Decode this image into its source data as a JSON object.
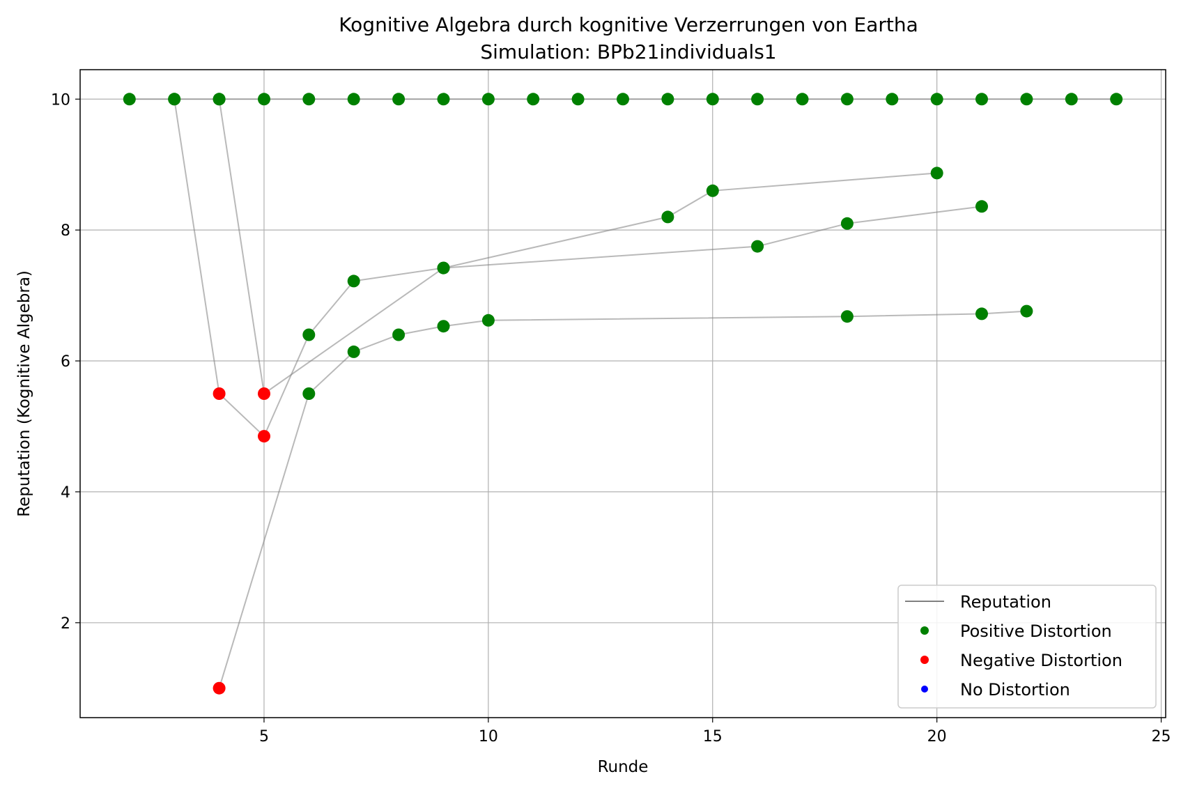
{
  "chart_data": {
    "type": "line",
    "title": "Kognitive Algebra durch kognitive Verzerrungen von Eartha",
    "subtitle": "Simulation: BPb21individuals1",
    "xlabel": "Runde",
    "ylabel": "Reputation (Kognitive Algebra)",
    "xlim": [
      0.9,
      25.1
    ],
    "ylim": [
      0.55,
      10.45
    ],
    "xticks": [
      5,
      10,
      15,
      20,
      25
    ],
    "yticks": [
      2,
      4,
      6,
      8,
      10
    ],
    "grid": true,
    "legend_position": "lower-right",
    "legend": [
      {
        "label": "Reputation",
        "kind": "line",
        "color": "#808080"
      },
      {
        "label": "Positive Distortion",
        "kind": "marker",
        "color": "#008000"
      },
      {
        "label": "Negative Distortion",
        "kind": "marker",
        "color": "#ff0000"
      },
      {
        "label": "No Distortion",
        "kind": "marker",
        "color": "#0000ff"
      }
    ],
    "colors": {
      "positive": "#008000",
      "negative": "#ff0000",
      "none": "#0000ff",
      "line": "#808080"
    },
    "series": [
      {
        "points": [
          [
            2,
            10
          ],
          [
            3,
            10
          ],
          [
            4,
            10
          ],
          [
            5,
            10
          ],
          [
            6,
            10
          ],
          [
            7,
            10
          ],
          [
            8,
            10
          ],
          [
            9,
            10
          ],
          [
            10,
            10
          ],
          [
            11,
            10
          ],
          [
            12,
            10
          ],
          [
            13,
            10
          ],
          [
            14,
            10
          ],
          [
            15,
            10
          ],
          [
            16,
            10
          ],
          [
            17,
            10
          ],
          [
            18,
            10
          ],
          [
            19,
            10
          ],
          [
            20,
            10
          ],
          [
            21,
            10
          ],
          [
            22,
            10
          ],
          [
            23,
            10
          ],
          [
            24,
            10
          ]
        ],
        "distortion": [
          "positive",
          "positive",
          "positive",
          "positive",
          "positive",
          "positive",
          "positive",
          "positive",
          "positive",
          "positive",
          "positive",
          "positive",
          "positive",
          "positive",
          "positive",
          "positive",
          "positive",
          "positive",
          "positive",
          "positive",
          "positive",
          "positive",
          "positive"
        ]
      },
      {
        "points": [
          [
            3,
            10
          ],
          [
            4,
            5.5
          ],
          [
            5,
            4.85
          ],
          [
            6,
            6.4
          ],
          [
            7,
            7.22
          ],
          [
            9,
            7.42
          ],
          [
            16,
            7.75
          ],
          [
            18,
            8.1
          ],
          [
            21,
            8.36
          ]
        ],
        "distortion": [
          "positive",
          "negative",
          "negative",
          "positive",
          "positive",
          "positive",
          "positive",
          "positive",
          "positive"
        ]
      },
      {
        "points": [
          [
            4,
            10
          ],
          [
            5,
            5.5
          ],
          [
            9,
            7.42
          ],
          [
            14,
            8.2
          ],
          [
            15,
            8.6
          ],
          [
            20,
            8.87
          ]
        ],
        "distortion": [
          "positive",
          "negative",
          "positive",
          "positive",
          "positive",
          "positive"
        ]
      },
      {
        "points": [
          [
            4,
            1.0
          ],
          [
            6,
            5.5
          ],
          [
            7,
            6.14
          ],
          [
            8,
            6.4
          ],
          [
            9,
            6.53
          ],
          [
            10,
            6.62
          ],
          [
            18,
            6.68
          ],
          [
            21,
            6.72
          ],
          [
            22,
            6.76
          ]
        ],
        "distortion": [
          "negative",
          "positive",
          "positive",
          "positive",
          "positive",
          "positive",
          "positive",
          "positive",
          "positive"
        ]
      }
    ]
  }
}
